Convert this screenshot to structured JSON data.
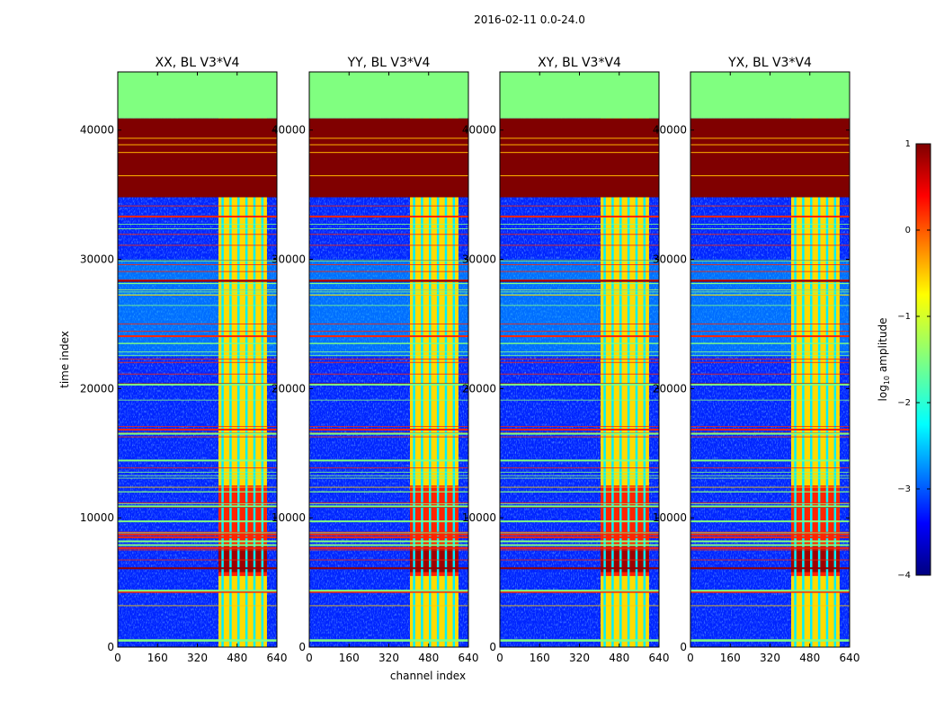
{
  "chart_data": {
    "type": "heatmap",
    "title": "2016-02-11 0.0-24.0",
    "xlabel": "channel index",
    "ylabel": "time index",
    "xlim": [
      0,
      640
    ],
    "ylim": [
      0,
      44500
    ],
    "x_ticks": [
      0,
      160,
      320,
      480,
      640
    ],
    "y_ticks": [
      0,
      10000,
      20000,
      30000,
      40000
    ],
    "colormap": "jet",
    "panels": [
      {
        "title": "XX, BL V3*V4"
      },
      {
        "title": "YY, BL V3*V4"
      },
      {
        "title": "XY, BL V3*V4"
      },
      {
        "title": "YX, BL V3*V4"
      }
    ],
    "colorbar": {
      "label_main": "log",
      "label_sub": "10",
      "label_rest": " amplitude",
      "range": [
        -4,
        1
      ],
      "ticks": [
        1,
        0,
        -1,
        -2,
        -3,
        -4
      ],
      "tick_labels": [
        "1",
        "0",
        "−1",
        "−2",
        "−3",
        "−4"
      ]
    },
    "features": {
      "flagged_time_block": [
        34800,
        40900
      ],
      "flagged_channel_block": [
        405,
        600
      ],
      "high_amplitude_time_range": [
        5500,
        12500
      ],
      "background_log_amplitude": -3.2,
      "flagged_log_amplitude": -1.5,
      "saturated_log_amplitude": 1.0
    }
  }
}
